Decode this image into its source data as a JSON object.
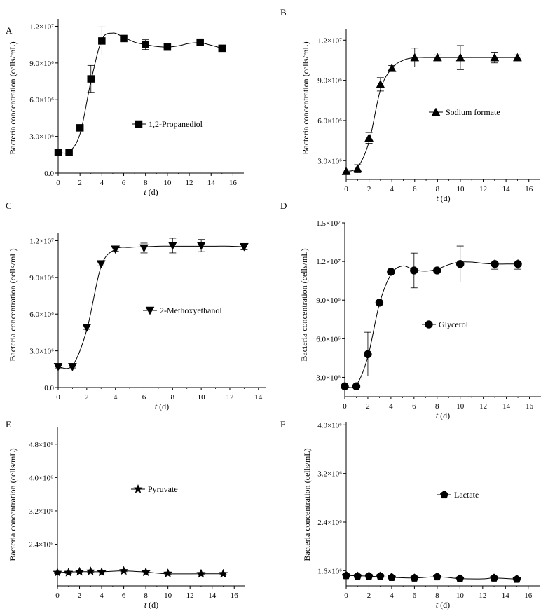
{
  "figure": {
    "xlabel_var": "t",
    "xlabel_unit": " (d)",
    "ylabel": "Bacteria concentration (cells/mL)"
  },
  "chart_data": [
    {
      "panel": "A",
      "type": "line",
      "marker": "square",
      "xlim": [
        0,
        17
      ],
      "ylim": [
        0,
        12600000
      ],
      "xticks": [
        0,
        2,
        4,
        6,
        8,
        10,
        12,
        14,
        16
      ],
      "yticks": [
        {
          "v": 0,
          "label": "0.0"
        },
        {
          "v": 3000000,
          "label": "3.0×10⁶"
        },
        {
          "v": 6000000,
          "label": "6.0×10⁶"
        },
        {
          "v": 9000000,
          "label": "9.0×10⁶"
        },
        {
          "v": 12000000,
          "label": "1.2×10⁷"
        }
      ],
      "series": [
        {
          "name": "1,2-Propanediol",
          "x": [
            0,
            1,
            2,
            3,
            4,
            6,
            8,
            10,
            13,
            15
          ],
          "y": [
            1700000,
            1700000,
            3700000,
            7700000,
            10800000,
            11000000,
            10500000,
            10300000,
            10700000,
            10200000
          ],
          "err": [
            100000,
            100000,
            250000,
            1100000,
            1150000,
            200000,
            400000,
            150000,
            150000,
            250000
          ]
        }
      ],
      "curve": {
        "x": [
          0,
          1,
          2,
          3,
          4,
          5,
          6,
          7,
          8,
          9,
          10,
          11,
          12,
          13,
          14,
          15
        ],
        "y": [
          1700000,
          1750000,
          3200000,
          7500000,
          10900000,
          11450000,
          11100000,
          10700000,
          10500000,
          10350000,
          10300000,
          10400000,
          10600000,
          10650000,
          10450000,
          10200000
        ]
      }
    },
    {
      "panel": "B",
      "type": "line",
      "marker": "triangle-up",
      "xlim": [
        0,
        17
      ],
      "ylim": [
        1600000,
        12800000
      ],
      "xticks": [
        0,
        2,
        4,
        6,
        8,
        10,
        12,
        14,
        16
      ],
      "yticks": [
        {
          "v": 3000000,
          "label": "3.0×10⁶"
        },
        {
          "v": 6000000,
          "label": "6.0×10⁶"
        },
        {
          "v": 9000000,
          "label": "9.0×10⁶"
        },
        {
          "v": 12000000,
          "label": "1.2×10⁷"
        }
      ],
      "series": [
        {
          "name": "Sodium formate",
          "x": [
            0,
            1,
            2,
            3,
            4,
            6,
            8,
            10,
            13,
            15
          ],
          "y": [
            2200000,
            2400000,
            4700000,
            8700000,
            9900000,
            10700000,
            10700000,
            10700000,
            10700000,
            10700000
          ],
          "err": [
            100000,
            300000,
            400000,
            500000,
            200000,
            700000,
            200000,
            900000,
            400000,
            200000
          ]
        }
      ],
      "curve": {
        "x": [
          0,
          1,
          2,
          3,
          4,
          5,
          6,
          7,
          8,
          9,
          10,
          11,
          12,
          13,
          14,
          15
        ],
        "y": [
          2200000,
          2500000,
          4400000,
          8300000,
          9900000,
          10500000,
          10700000,
          10700000,
          10700000,
          10700000,
          10700000,
          10700000,
          10700000,
          10700000,
          10700000,
          10700000
        ]
      }
    },
    {
      "panel": "C",
      "type": "line",
      "marker": "triangle-down",
      "xlim": [
        0,
        14.5
      ],
      "ylim": [
        0,
        12600000
      ],
      "xticks": [
        0,
        2,
        4,
        6,
        8,
        10,
        12,
        14
      ],
      "yticks": [
        {
          "v": 0,
          "label": "0.0"
        },
        {
          "v": 3000000,
          "label": "3.0×10⁶"
        },
        {
          "v": 6000000,
          "label": "6.0×10⁶"
        },
        {
          "v": 9000000,
          "label": "9.0×10⁶"
        },
        {
          "v": 12000000,
          "label": "1.2×10⁷"
        }
      ],
      "series": [
        {
          "name": "2-Methoxyethanol",
          "x": [
            0,
            1,
            2,
            3,
            4,
            6,
            8,
            10,
            13
          ],
          "y": [
            1700000,
            1700000,
            4900000,
            10100000,
            11300000,
            11400000,
            11600000,
            11600000,
            11500000
          ],
          "err": [
            100000,
            100000,
            150000,
            150000,
            150000,
            400000,
            600000,
            500000,
            250000
          ]
        }
      ],
      "curve": {
        "x": [
          0,
          1,
          2,
          3,
          4,
          5,
          6,
          7,
          8,
          9,
          10,
          11,
          12,
          13
        ],
        "y": [
          1700000,
          1800000,
          4700000,
          9900000,
          11300000,
          11450000,
          11500000,
          11550000,
          11550000,
          11550000,
          11550000,
          11550000,
          11550000,
          11500000
        ]
      }
    },
    {
      "panel": "D",
      "type": "line",
      "marker": "circle",
      "xlim": [
        0,
        17
      ],
      "ylim": [
        1500000,
        15000000
      ],
      "xticks": [
        0,
        2,
        4,
        6,
        8,
        10,
        12,
        14,
        16
      ],
      "yticks": [
        {
          "v": 3000000,
          "label": "3.0×10⁶"
        },
        {
          "v": 6000000,
          "label": "6.0×10⁶"
        },
        {
          "v": 9000000,
          "label": "9.0×10⁶"
        },
        {
          "v": 12000000,
          "label": "1.2×10⁷"
        },
        {
          "v": 15000000,
          "label": "1.5×10⁷"
        }
      ],
      "series": [
        {
          "name": "Glycerol",
          "x": [
            0,
            1,
            2,
            3,
            4,
            6,
            8,
            10,
            13,
            15
          ],
          "y": [
            2300000,
            2300000,
            4800000,
            8800000,
            11200000,
            11300000,
            11300000,
            11800000,
            11800000,
            11800000
          ],
          "err": [
            100000,
            100000,
            1700000,
            150000,
            150000,
            1350000,
            100000,
            1400000,
            400000,
            400000
          ]
        }
      ],
      "curve": {
        "x": [
          0,
          1,
          2,
          3,
          4,
          5,
          6,
          7,
          8,
          9,
          10,
          11,
          12,
          13,
          14,
          15
        ],
        "y": [
          2300000,
          2400000,
          4600000,
          8700000,
          11000000,
          11650000,
          11350000,
          11250000,
          11400000,
          11750000,
          11950000,
          11950000,
          11850000,
          11800000,
          11800000,
          11800000
        ]
      }
    },
    {
      "panel": "E",
      "type": "line",
      "marker": "star",
      "xlim": [
        0,
        17
      ],
      "ylim": [
        1400000,
        5200000
      ],
      "xticks": [
        0,
        2,
        4,
        6,
        8,
        10,
        12,
        14,
        16
      ],
      "yticks": [
        {
          "v": 2400000,
          "label": "2.4×10⁶"
        },
        {
          "v": 3200000,
          "label": "3.2×10⁶"
        },
        {
          "v": 4000000,
          "label": "4.0×10⁶"
        },
        {
          "v": 4800000,
          "label": "4.8×10⁶"
        }
      ],
      "series": [
        {
          "name": "Pyruvate",
          "x": [
            0,
            1,
            2,
            3,
            4,
            6,
            8,
            10,
            13,
            15
          ],
          "y": [
            1720000,
            1720000,
            1740000,
            1750000,
            1730000,
            1760000,
            1730000,
            1700000,
            1690000,
            1690000
          ],
          "err": [
            20000,
            20000,
            20000,
            20000,
            20000,
            20000,
            20000,
            20000,
            20000,
            20000
          ]
        }
      ],
      "curve": {
        "x": [
          0,
          2,
          4,
          6,
          8,
          10,
          13,
          15
        ],
        "y": [
          1720000,
          1740000,
          1740000,
          1760000,
          1730000,
          1690000,
          1690000,
          1690000
        ]
      }
    },
    {
      "panel": "F",
      "type": "line",
      "marker": "pentagon",
      "xlim": [
        0,
        17
      ],
      "ylim": [
        1350000,
        4050000
      ],
      "xticks": [
        0,
        2,
        4,
        6,
        8,
        10,
        12,
        14,
        16
      ],
      "yticks": [
        {
          "v": 1600000,
          "label": "1.6×10⁶"
        },
        {
          "v": 2400000,
          "label": "2.4×10⁶"
        },
        {
          "v": 3200000,
          "label": "3.2×10⁶"
        },
        {
          "v": 4000000,
          "label": "4.0×10⁶"
        }
      ],
      "series": [
        {
          "name": "Lactate",
          "x": [
            0,
            1,
            2,
            3,
            4,
            6,
            8,
            10,
            13,
            15
          ],
          "y": [
            1520000,
            1510000,
            1510000,
            1510000,
            1490000,
            1480000,
            1500000,
            1470000,
            1480000,
            1460000
          ],
          "err": [
            20000,
            20000,
            20000,
            20000,
            20000,
            20000,
            20000,
            20000,
            20000,
            20000
          ]
        }
      ],
      "curve": {
        "x": [
          0,
          2,
          4,
          6,
          8,
          10,
          12,
          13,
          15
        ],
        "y": [
          1520000,
          1510000,
          1490000,
          1480000,
          1500000,
          1470000,
          1465000,
          1480000,
          1460000
        ]
      }
    }
  ]
}
